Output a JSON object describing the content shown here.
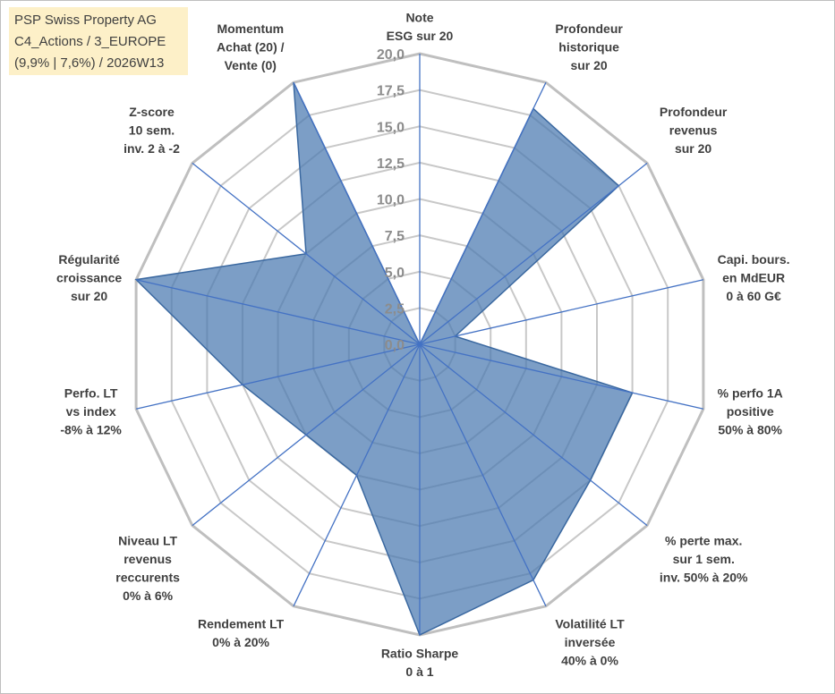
{
  "header": {
    "line1": "PSP Swiss Property AG",
    "line2": "C4_Actions / 3_EUROPE",
    "line3": "(9,9% | 7,6%) / 2026W13"
  },
  "colors": {
    "fill": "#4a78b0",
    "axis": "#4472c4",
    "grid": "#c8c8c8",
    "outer": "#bfbfbf"
  },
  "chart_data": {
    "type": "radar",
    "title": "",
    "ylim": [
      0,
      20
    ],
    "ticks": [
      "0,0",
      "2,5",
      "5,0",
      "7,5",
      "10,0",
      "12,5",
      "15,0",
      "17,5",
      "20,0"
    ],
    "categories": [
      [
        "Note",
        "ESG sur 20"
      ],
      [
        "Profondeur",
        "historique",
        "sur 20"
      ],
      [
        "Profondeur",
        "revenus",
        "sur 20"
      ],
      [
        "Capi. bours.",
        "en MdEUR",
        "0 à 60 G€"
      ],
      [
        "% perfo 1A",
        "positive",
        "50% à 80%"
      ],
      [
        "% perte max.",
        "sur 1 sem.",
        "inv. 50% à 20%"
      ],
      [
        "Volatilité LT",
        "inversée",
        "40% à 0%"
      ],
      [
        "Ratio Sharpe",
        "0 à 1"
      ],
      [
        "Rendement LT",
        "0% à 20%"
      ],
      [
        "Niveau LT",
        "revenus",
        "reccurents",
        "0% à 6%"
      ],
      [
        "Perfo. LT",
        "vs index",
        "-8% à 12%"
      ],
      [
        "Régularité",
        "croissance",
        "sur 20"
      ],
      [
        "Z-score",
        "10 sem.",
        "inv. 2 à -2"
      ],
      [
        "Momentum",
        "Achat (20) /",
        "Vente (0)"
      ]
    ],
    "series": [
      {
        "name": "PSP Swiss Property AG",
        "values": [
          0,
          18,
          17.5,
          2.5,
          15,
          15,
          18,
          20,
          10,
          10,
          12.5,
          20,
          10,
          20
        ]
      }
    ]
  }
}
